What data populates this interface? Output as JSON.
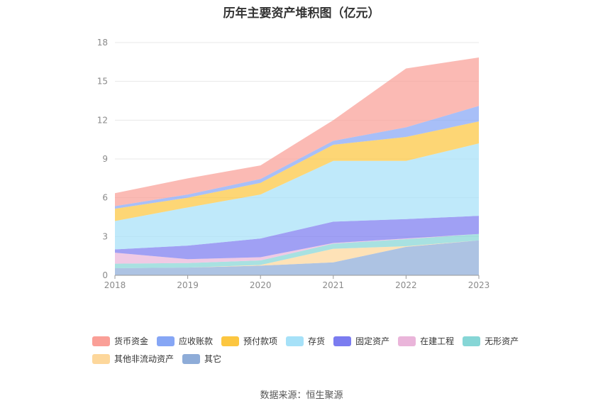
{
  "title": "历年主要资产堆积图（亿元）",
  "source": "数据来源：恒生聚源",
  "chart_data": {
    "type": "area",
    "stacked": true,
    "categories": [
      "2018",
      "2019",
      "2020",
      "2021",
      "2022",
      "2023"
    ],
    "ylim": [
      0,
      18
    ],
    "yticks": [
      0,
      3,
      6,
      9,
      12,
      15,
      18
    ],
    "grid": true,
    "legend_position": "bottom",
    "series": [
      {
        "name": "其它",
        "color": "#8eacd8",
        "values": [
          0.55,
          0.6,
          0.75,
          1.0,
          2.2,
          2.7
        ]
      },
      {
        "name": "其他非流动资产",
        "color": "#fdd79b",
        "values": [
          0.0,
          0.0,
          0.05,
          1.05,
          0.05,
          0.0
        ]
      },
      {
        "name": "无形资产",
        "color": "#86d6d6",
        "values": [
          0.35,
          0.35,
          0.35,
          0.4,
          0.55,
          0.5
        ]
      },
      {
        "name": "在建工程",
        "color": "#eab5da",
        "values": [
          0.85,
          0.3,
          0.25,
          0.05,
          0.05,
          0.0
        ]
      },
      {
        "name": "固定资产",
        "color": "#7b7cf0",
        "values": [
          0.25,
          1.05,
          1.45,
          1.65,
          1.5,
          1.4
        ]
      },
      {
        "name": "存货",
        "color": "#a6e1f8",
        "values": [
          2.2,
          2.95,
          3.4,
          4.7,
          4.5,
          5.6
        ]
      },
      {
        "name": "预付款项",
        "color": "#fcc640",
        "values": [
          0.95,
          0.75,
          0.9,
          1.25,
          1.85,
          1.7
        ]
      },
      {
        "name": "应收账款",
        "color": "#86a6f5",
        "values": [
          0.2,
          0.25,
          0.3,
          0.3,
          0.75,
          1.2
        ]
      },
      {
        "name": "货币资金",
        "color": "#fa9f97",
        "values": [
          1.0,
          1.25,
          1.05,
          1.6,
          4.55,
          3.75
        ]
      }
    ]
  },
  "legend_order": [
    "货币资金",
    "应收账款",
    "预付款项",
    "存货",
    "固定资产",
    "在建工程",
    "无形资产",
    "其他非流动资产",
    "其它"
  ]
}
